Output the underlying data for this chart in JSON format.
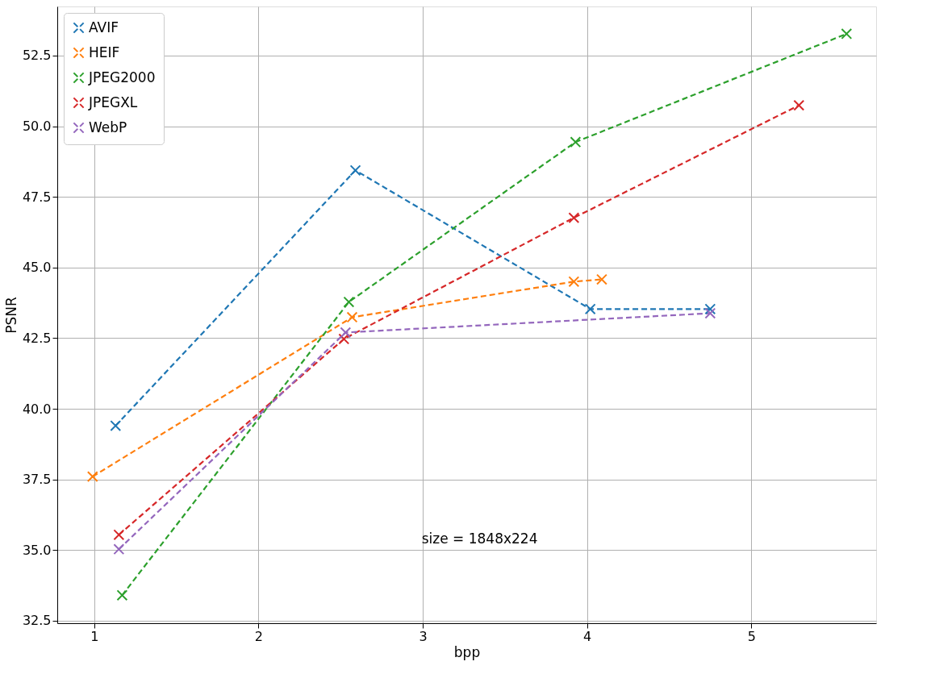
{
  "chart_data": {
    "type": "line",
    "xlabel": "bpp",
    "ylabel": "PSNR",
    "xlim": [
      0.775,
      5.76
    ],
    "ylim": [
      32.41,
      54.24
    ],
    "xticks": [
      1,
      2,
      3,
      4,
      5
    ],
    "yticks": [
      {
        "value": 32.5,
        "label": "32.5"
      },
      {
        "value": 35,
        "label": "35.0"
      },
      {
        "value": 37.5,
        "label": "37.5"
      },
      {
        "value": 40,
        "label": "40.0"
      },
      {
        "value": 42.5,
        "label": "42.5"
      },
      {
        "value": 45,
        "label": "45.0"
      },
      {
        "value": 47.5,
        "label": "47.5"
      },
      {
        "value": 50,
        "label": "50.0"
      },
      {
        "value": 52.5,
        "label": "52.5"
      }
    ],
    "grid": true,
    "legend": "top left",
    "marker": "cross",
    "line_style": "dashed",
    "series": [
      {
        "name": "AVIF",
        "color": "#1f77b4",
        "x": [
          1.13,
          2.59,
          4.02,
          4.75
        ],
        "values": [
          39.4,
          48.44,
          43.53,
          43.53
        ]
      },
      {
        "name": "HEIF",
        "color": "#ff7f0e",
        "x": [
          0.99,
          2.57,
          3.92,
          4.09
        ],
        "values": [
          37.6,
          43.24,
          44.5,
          44.58
        ]
      },
      {
        "name": "JPEG2000",
        "color": "#2ca02c",
        "x": [
          1.17,
          2.55,
          3.93,
          5.58
        ],
        "values": [
          33.4,
          43.78,
          49.44,
          53.27
        ]
      },
      {
        "name": "JPEGXL",
        "color": "#d62728",
        "x": [
          1.15,
          2.52,
          3.92,
          5.29
        ],
        "values": [
          35.54,
          42.47,
          46.76,
          50.74
        ]
      },
      {
        "name": "WebP",
        "color": "#9467bd",
        "x": [
          1.15,
          2.53,
          4.75
        ],
        "values": [
          35.03,
          42.7,
          43.38
        ]
      }
    ],
    "annotations": [
      "size = 1848x224"
    ]
  }
}
